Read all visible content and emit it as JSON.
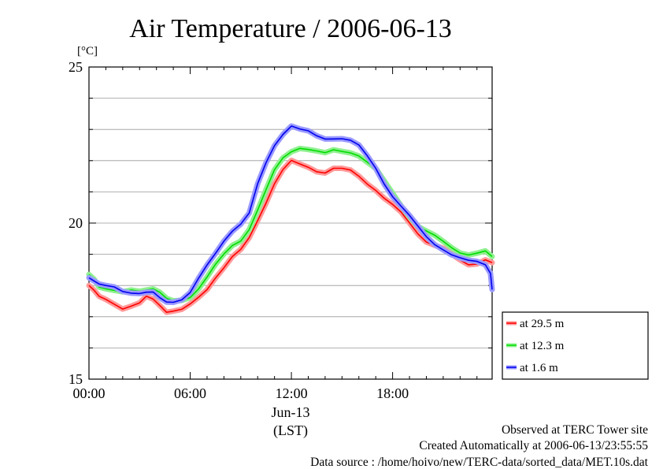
{
  "chart_data": {
    "type": "line",
    "title": "Air Temperature / 2006-06-13",
    "y_unit": "[°C]",
    "ylim": [
      15,
      25
    ],
    "y_ticks": [
      15,
      20,
      25
    ],
    "y_minor_step": 1,
    "xlim": [
      0,
      23.9
    ],
    "x_ticks": [
      {
        "value": 0,
        "label": "00:00"
      },
      {
        "value": 6,
        "label": "06:00"
      },
      {
        "value": 12,
        "label": "12:00"
      },
      {
        "value": 18,
        "label": "18:00"
      }
    ],
    "x_date_label": "Jun-13",
    "x_zone_label": "(LST)",
    "grid": "horizontal",
    "legend_position": "right-bottom-outside",
    "series": [
      {
        "name": "at 29.5 m",
        "color": "#ff0000",
        "band": "#ff9a9a",
        "x": [
          0,
          0.3,
          0.6,
          1,
          1.5,
          2,
          2.5,
          3,
          3.4,
          3.8,
          4.2,
          4.6,
          5,
          5.5,
          6,
          6.5,
          7,
          7.5,
          8,
          8.5,
          9,
          9.5,
          10,
          10.5,
          11,
          11.5,
          12,
          12.5,
          13,
          13.5,
          14,
          14.5,
          15,
          15.5,
          16,
          16.5,
          17,
          17.5,
          18,
          18.5,
          19,
          19.5,
          20,
          20.5,
          21,
          21.5,
          22,
          22.5,
          23,
          23.5,
          23.9
        ],
        "y": [
          18.0,
          17.8,
          17.6,
          17.55,
          17.45,
          17.3,
          17.35,
          17.4,
          17.6,
          17.55,
          17.4,
          17.2,
          17.2,
          17.2,
          17.35,
          17.6,
          17.9,
          18.3,
          18.6,
          18.9,
          19.1,
          19.5,
          20.1,
          20.7,
          21.3,
          21.7,
          21.95,
          21.85,
          21.8,
          21.7,
          21.65,
          21.75,
          21.7,
          21.65,
          21.5,
          21.3,
          21.1,
          20.8,
          20.55,
          20.3,
          20.0,
          19.7,
          19.45,
          19.3,
          19.15,
          18.95,
          18.8,
          18.7,
          18.75,
          18.85,
          18.7
        ]
      },
      {
        "name": "at 12.3 m",
        "color": "#00dd00",
        "band": "#90f090",
        "x": [
          0,
          0.3,
          0.6,
          1,
          1.5,
          2,
          2.5,
          3,
          3.4,
          3.8,
          4.2,
          4.6,
          5,
          5.5,
          6,
          6.5,
          7,
          7.5,
          8,
          8.5,
          9,
          9.5,
          10,
          10.5,
          11,
          11.5,
          12,
          12.5,
          13,
          13.5,
          14,
          14.5,
          15,
          15.5,
          16,
          16.5,
          17,
          17.5,
          18,
          18.5,
          19,
          19.5,
          20,
          20.5,
          21,
          21.5,
          22,
          22.5,
          23,
          23.5,
          23.9
        ],
        "y": [
          18.3,
          18.2,
          18.0,
          17.95,
          17.85,
          17.75,
          17.8,
          17.8,
          17.9,
          17.95,
          17.8,
          17.55,
          17.45,
          17.5,
          17.65,
          17.95,
          18.3,
          18.65,
          18.95,
          19.25,
          19.45,
          19.85,
          20.45,
          21.05,
          21.65,
          22.05,
          22.3,
          22.45,
          22.4,
          22.3,
          22.2,
          22.3,
          22.3,
          22.3,
          22.2,
          21.95,
          21.7,
          21.3,
          20.95,
          20.6,
          20.25,
          19.9,
          19.7,
          19.55,
          19.4,
          19.25,
          19.1,
          19.0,
          19.0,
          19.05,
          18.9
        ]
      },
      {
        "name": "at 1.6 m",
        "color": "#0000ee",
        "band": "#9a9aff",
        "x": [
          0,
          0.3,
          0.6,
          1,
          1.5,
          2,
          2.5,
          3,
          3.4,
          3.8,
          4.2,
          4.6,
          5,
          5.5,
          6,
          6.5,
          7,
          7.5,
          8,
          8.5,
          9,
          9.5,
          10,
          10.5,
          11,
          11.5,
          12,
          12.5,
          13,
          13.5,
          14,
          14.5,
          15,
          15.5,
          16,
          16.5,
          17,
          17.5,
          18,
          18.5,
          19,
          19.5,
          20,
          20.5,
          21,
          21.5,
          22,
          22.5,
          23,
          23.5,
          23.8,
          23.9
        ],
        "y": [
          18.3,
          18.2,
          18.05,
          17.95,
          17.9,
          17.8,
          17.8,
          17.8,
          17.8,
          17.75,
          17.55,
          17.45,
          17.5,
          17.6,
          17.8,
          18.2,
          18.6,
          19.0,
          19.45,
          19.8,
          20.0,
          20.3,
          21.2,
          21.9,
          22.5,
          22.9,
          23.15,
          23.0,
          22.9,
          22.75,
          22.7,
          22.75,
          22.75,
          22.65,
          22.45,
          22.1,
          21.75,
          21.3,
          20.9,
          20.55,
          20.2,
          19.85,
          19.55,
          19.35,
          19.2,
          19.0,
          18.85,
          18.75,
          18.75,
          18.7,
          18.45,
          17.9
        ]
      }
    ]
  },
  "footer": {
    "line1": "Observed at TERC Tower site",
    "line2": "Created Automatically at 2006-06-13/23:55:55",
    "line3": "Data source : /home/hoivo/new/TERC-data/sorted_data/MET.10s.dat"
  }
}
